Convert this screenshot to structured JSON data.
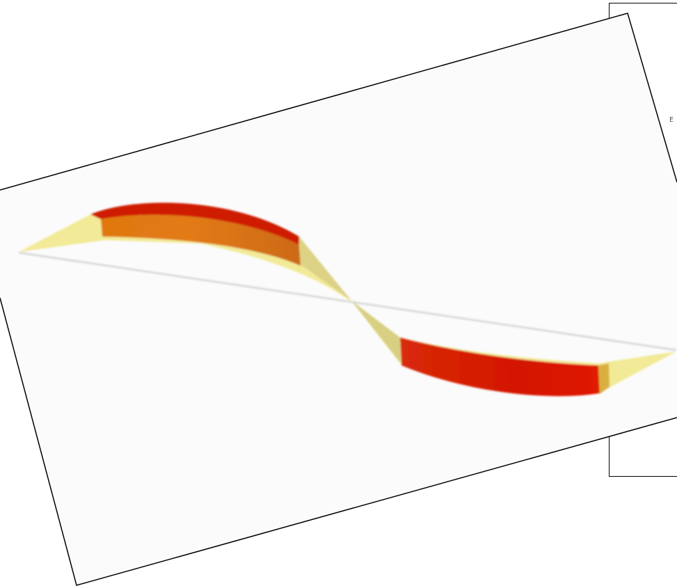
{
  "back_panel": {
    "glyph": "E",
    "glyph_icon": "small-e-glyph"
  },
  "front_sheet": {
    "background": "#fbfbfb",
    "border": "#000000"
  },
  "ribbon": {
    "fill_light": "#f2ea96",
    "fill_shadow": "#d8cf82",
    "axis_line": "#d4d4d4",
    "band_colors": [
      "#cf1f00",
      "#e07810",
      "#d40f00"
    ]
  }
}
